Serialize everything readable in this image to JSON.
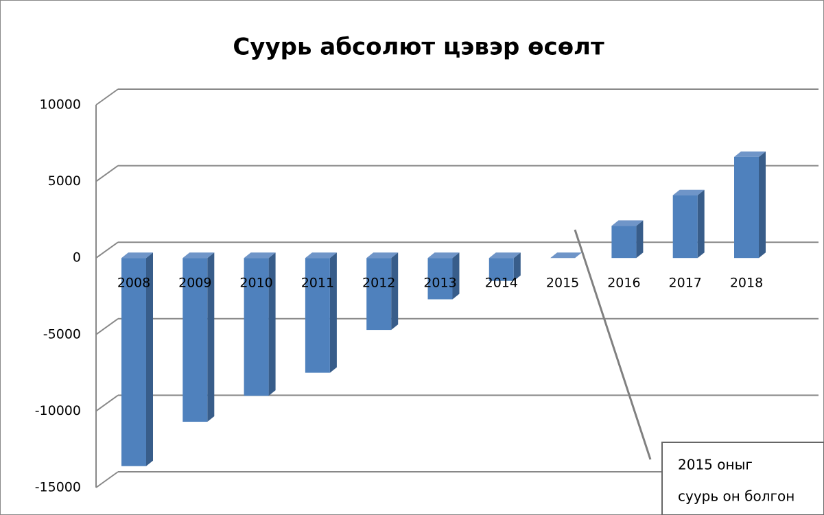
{
  "chart_data": {
    "type": "bar3d",
    "title": "Суурь абсолют цэвэр өсөлт",
    "categories": [
      "2008",
      "2009",
      "2010",
      "2011",
      "2012",
      "2013",
      "2014",
      "2015",
      "2016",
      "2017",
      "2018"
    ],
    "values": [
      -13600,
      -10700,
      -9000,
      -7500,
      -4700,
      -2700,
      -1500,
      0,
      2100,
      4100,
      6600
    ],
    "color": "#4f81bd",
    "ylim": [
      -15000,
      10000
    ],
    "yticks": [
      -15000,
      -10000,
      -5000,
      0,
      5000,
      10000
    ],
    "grid": true,
    "annotation": [
      "2015 оныг",
      "суурь он болгон"
    ]
  }
}
